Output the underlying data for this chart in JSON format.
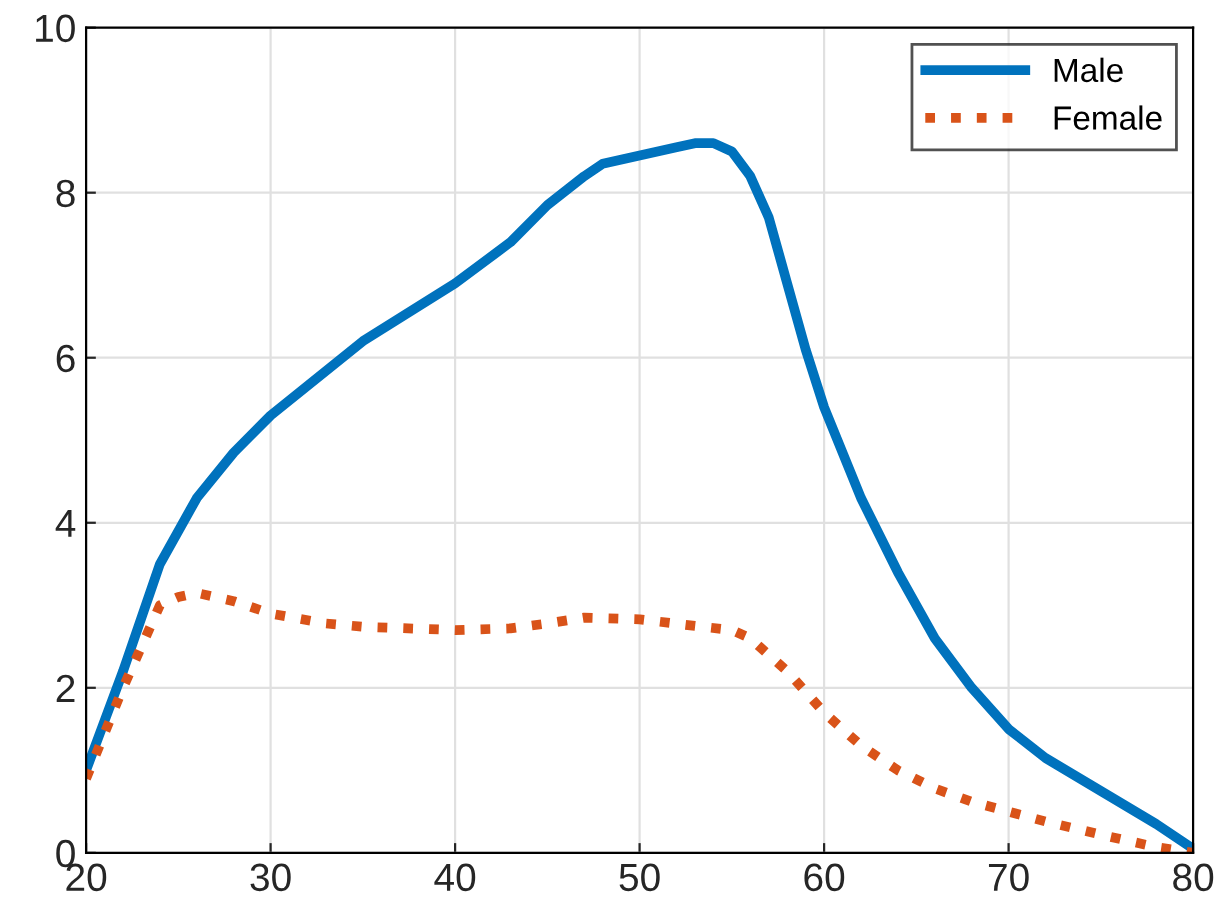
{
  "chart_data": {
    "type": "line",
    "xlim": [
      20,
      80
    ],
    "xticks": [
      20,
      30,
      40,
      50,
      60,
      70,
      80
    ],
    "ylim": [
      0,
      10
    ],
    "yticks": [
      0,
      2,
      4,
      6,
      8,
      10
    ],
    "grid": true,
    "legend": "top right",
    "series": [
      {
        "name": "Male",
        "color": "#0072bd",
        "line_style": "solid",
        "x": [
          20,
          22,
          24,
          26,
          28,
          30,
          35,
          40,
          43,
          45,
          47,
          48,
          50,
          52,
          53,
          54,
          55,
          56,
          57,
          58,
          59,
          60,
          62,
          64,
          66,
          68,
          70,
          72,
          75,
          78,
          80
        ],
        "values": [
          1.0,
          2.2,
          3.5,
          4.3,
          4.85,
          5.3,
          6.2,
          6.9,
          7.4,
          7.85,
          8.2,
          8.35,
          8.45,
          8.55,
          8.6,
          8.6,
          8.5,
          8.2,
          7.7,
          6.9,
          6.1,
          5.4,
          4.3,
          3.4,
          2.6,
          2.0,
          1.5,
          1.15,
          0.75,
          0.35,
          0.05
        ]
      },
      {
        "name": "Female",
        "color": "#d95319",
        "line_style": "dotted",
        "x": [
          20,
          22,
          24,
          25,
          26,
          28,
          30,
          33,
          35,
          40,
          43,
          45,
          47,
          50,
          53,
          55,
          56,
          58,
          60,
          62,
          64,
          66,
          68,
          70,
          72,
          75,
          78,
          80
        ],
        "values": [
          0.9,
          2.0,
          3.0,
          3.1,
          3.15,
          3.05,
          2.9,
          2.78,
          2.74,
          2.7,
          2.72,
          2.78,
          2.85,
          2.83,
          2.75,
          2.7,
          2.6,
          2.2,
          1.7,
          1.3,
          1.0,
          0.78,
          0.62,
          0.5,
          0.38,
          0.22,
          0.07,
          0.0
        ]
      }
    ]
  }
}
